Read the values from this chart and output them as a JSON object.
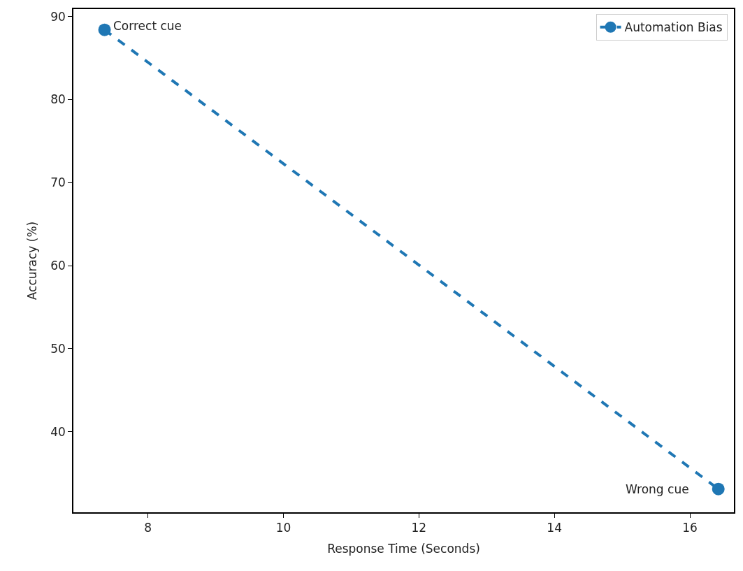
{
  "chart_data": {
    "type": "line",
    "xlabel": "Response Time (Seconds)",
    "ylabel": "Accuracy (%)",
    "x": [
      7.36,
      16.42
    ],
    "series": [
      {
        "name": "Automation Bias",
        "color": "#1f77b4",
        "values": [
          88.4,
          33.1
        ]
      }
    ],
    "xlim": [
      6.9,
      16.65
    ],
    "xticks": [
      8,
      10,
      12,
      14,
      16
    ],
    "ylim": [
      30.3,
      90.9
    ],
    "yticks": [
      40,
      50,
      60,
      70,
      80,
      90
    ],
    "annotations": [
      {
        "text": "Correct cue",
        "x": 7.36,
        "y": 88.4
      },
      {
        "text": "Wrong cue",
        "x": 16.42,
        "y": 33.1
      }
    ],
    "marker": "circle",
    "line_style": "dashed",
    "legend": "top right"
  }
}
